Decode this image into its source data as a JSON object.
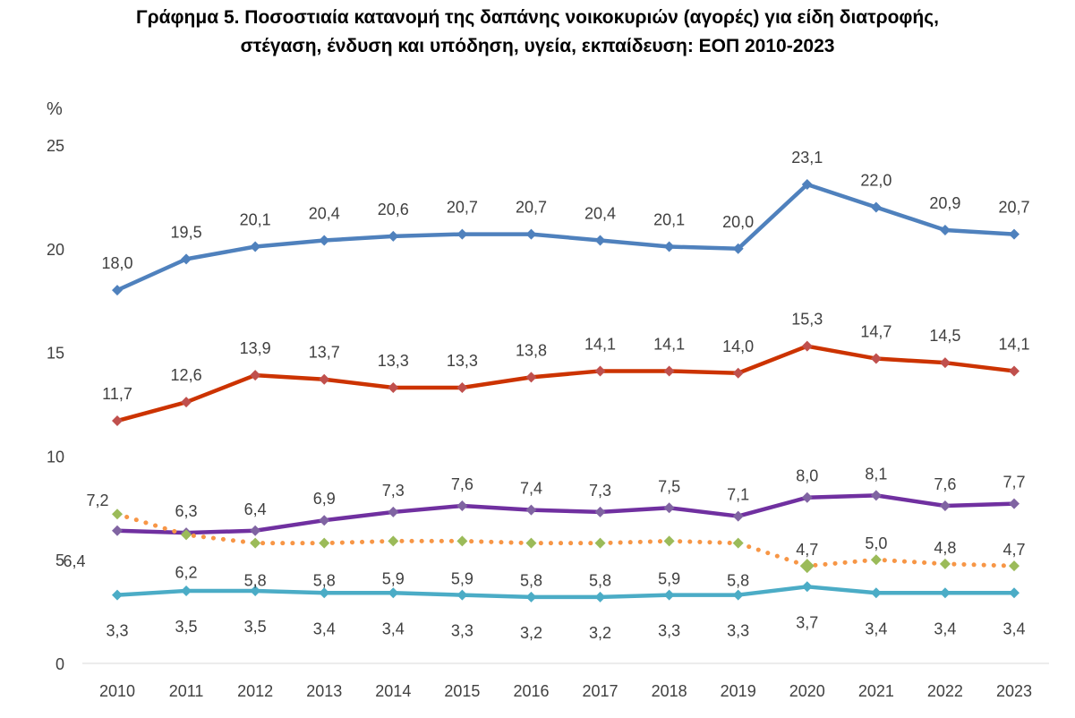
{
  "chart_data": {
    "type": "line",
    "title_lines": [
      "Γράφημα 5. Ποσοστιαία κατανομή της δαπάνης νοικοκυριών (αγορές) για είδη διατροφής,",
      "στέγαση, ένδυση και υπόδηση, υγεία, εκπαίδευση: ΕΟΠ 2010-2023"
    ],
    "ylabel": "%",
    "xlabel": "",
    "ylim": [
      0,
      25
    ],
    "yticks": [
      "0",
      "5",
      "10",
      "15",
      "20",
      "25"
    ],
    "x": [
      "2010",
      "2011",
      "2012",
      "2013",
      "2014",
      "2015",
      "2016",
      "2017",
      "2018",
      "2019",
      "2020",
      "2021",
      "2022",
      "2023"
    ],
    "grid": false,
    "legend": "none",
    "series": [
      {
        "name": "series-blue",
        "line_color": "#4f81bd",
        "marker_color": "#4f81bd",
        "dashed": false,
        "values": [
          18.0,
          19.5,
          20.1,
          20.4,
          20.6,
          20.7,
          20.7,
          20.4,
          20.1,
          20.0,
          23.1,
          22.0,
          20.9,
          20.7
        ],
        "labels": [
          "18,0",
          "19,5",
          "20,1",
          "20,4",
          "20,6",
          "20,7",
          "20,7",
          "20,4",
          "20,1",
          "20,0",
          "23,1",
          "22,0",
          "20,9",
          "20,7"
        ]
      },
      {
        "name": "series-red",
        "line_color": "#cc3300",
        "marker_color": "#c0504d",
        "dashed": false,
        "values": [
          11.7,
          12.6,
          13.9,
          13.7,
          13.3,
          13.3,
          13.8,
          14.1,
          14.1,
          14.0,
          15.3,
          14.7,
          14.5,
          14.1
        ],
        "labels": [
          "11,7",
          "12,6",
          "13,9",
          "13,7",
          "13,3",
          "13,3",
          "13,8",
          "14,1",
          "14,1",
          "14,0",
          "15,3",
          "14,7",
          "14,5",
          "14,1"
        ]
      },
      {
        "name": "series-purple",
        "line_color": "#7030a0",
        "marker_color": "#8064a2",
        "dashed": false,
        "values": [
          6.4,
          6.3,
          6.4,
          6.9,
          7.3,
          7.6,
          7.4,
          7.3,
          7.5,
          7.1,
          8.0,
          8.1,
          7.6,
          7.7
        ],
        "labels": [
          "6,4",
          "6,3",
          "6,4",
          "6,9",
          "7,3",
          "7,6",
          "7,4",
          "7,3",
          "7,5",
          "7,1",
          "8,0",
          "8,1",
          "7,6",
          "7,7"
        ]
      },
      {
        "name": "series-orange",
        "line_color": "#f79646",
        "marker_color": "#9bbb59",
        "dashed": true,
        "values": [
          7.2,
          6.2,
          5.8,
          5.8,
          5.9,
          5.9,
          5.8,
          5.8,
          5.9,
          5.8,
          4.7,
          5.0,
          4.8,
          4.7
        ],
        "labels": [
          "7,2",
          "6,2",
          "5,8",
          "5,8",
          "5,9",
          "5,9",
          "5,8",
          "5,8",
          "5,9",
          "5,8",
          "4,7",
          "5,0",
          "4,8",
          "4,7"
        ]
      },
      {
        "name": "series-cyan",
        "line_color": "#4bacc6",
        "marker_color": "#4bacc6",
        "dashed": false,
        "values": [
          3.3,
          3.5,
          3.5,
          3.4,
          3.4,
          3.3,
          3.2,
          3.2,
          3.3,
          3.3,
          3.7,
          3.4,
          3.4,
          3.4
        ],
        "labels": [
          "3,3",
          "3,5",
          "3,5",
          "3,4",
          "3,4",
          "3,3",
          "3,2",
          "3,2",
          "3,3",
          "3,3",
          "3,7",
          "3,4",
          "3,4",
          "3,4"
        ]
      }
    ]
  }
}
